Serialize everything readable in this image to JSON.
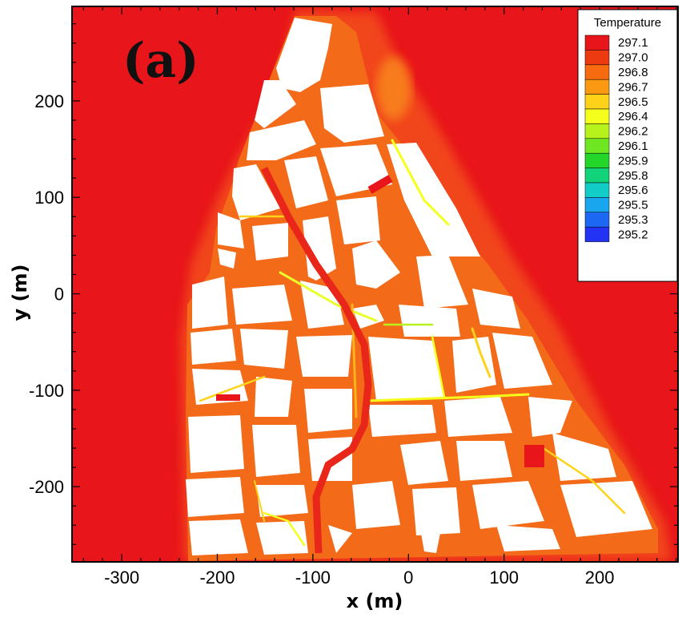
{
  "chart_data": {
    "type": "heatmap",
    "title": "",
    "panel_label": "(a)",
    "xlabel": "x (m)",
    "ylabel": "y (m)",
    "xlim": [
      -352,
      282
    ],
    "ylim": [
      -278,
      298
    ],
    "x_ticks": [
      -300,
      -200,
      -100,
      0,
      100,
      200
    ],
    "x_tick_labels": [
      "-300",
      "-200",
      "-100",
      "0",
      "100",
      "200"
    ],
    "y_ticks": [
      -200,
      -100,
      0,
      100,
      200
    ],
    "y_tick_labels": [
      "-200",
      "-100",
      "0",
      "100",
      "200"
    ],
    "background_value": 297.1,
    "legend": {
      "title": "Temperature",
      "placement": "top-right",
      "levels": [
        "297.1",
        "297.0",
        "296.8",
        "296.7",
        "296.5",
        "296.4",
        "296.2",
        "296.1",
        "295.9",
        "295.8",
        "295.6",
        "295.5",
        "295.3",
        "295.2"
      ],
      "colors": [
        "#e8151a",
        "#ee3a10",
        "#f66a10",
        "#fb9a12",
        "#ffd21a",
        "#f4ff1c",
        "#b8f21c",
        "#6fe622",
        "#24d62a",
        "#12d37a",
        "#12cdc7",
        "#1aa6ee",
        "#1d68f2",
        "#2233f4"
      ]
    },
    "domain_outline_xy": [
      [
        -228,
        -272
      ],
      [
        -232,
        -238
      ],
      [
        -232,
        -120
      ],
      [
        -232,
        0
      ],
      [
        -228,
        72
      ],
      [
        -205,
        140
      ],
      [
        -160,
        215
      ],
      [
        -110,
        285
      ],
      [
        -70,
        285
      ],
      [
        -20,
        240
      ],
      [
        40,
        160
      ],
      [
        100,
        80
      ],
      [
        170,
        -10
      ],
      [
        230,
        -130
      ],
      [
        262,
        -230
      ],
      [
        262,
        -272
      ]
    ],
    "grid": false
  }
}
